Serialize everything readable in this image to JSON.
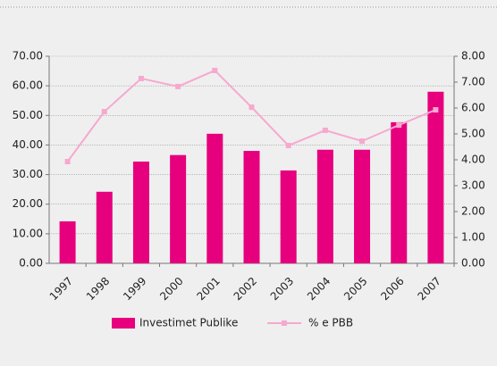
{
  "chart_data": {
    "type": "bar_line",
    "categories": [
      "1997",
      "1998",
      "1999",
      "2000",
      "2001",
      "2002",
      "2003",
      "2004",
      "2005",
      "2006",
      "2007"
    ],
    "series": [
      {
        "name": "Investimet Publike",
        "type": "bar",
        "color": "#e6007e",
        "values": [
          14.2,
          24.2,
          34.4,
          36.6,
          43.8,
          38.0,
          31.4,
          38.4,
          38.4,
          47.7,
          58.0
        ]
      },
      {
        "name": "% e PBB",
        "type": "line",
        "axis": "y2",
        "color": "#f7a8cf",
        "values": [
          3.93,
          5.86,
          7.14,
          6.83,
          7.45,
          6.03,
          4.55,
          5.14,
          4.72,
          5.34,
          5.93
        ]
      }
    ],
    "ylim": [
      0,
      70
    ],
    "yticks": [
      {
        "value": 0,
        "label": "0.00"
      },
      {
        "value": 10,
        "label": "10.00"
      },
      {
        "value": 20,
        "label": "20.00"
      },
      {
        "value": 30,
        "label": "30.00"
      },
      {
        "value": 40,
        "label": "40.00"
      },
      {
        "value": 50,
        "label": "50.00"
      },
      {
        "value": 60,
        "label": "60.00"
      },
      {
        "value": 70,
        "label": "70.00"
      }
    ],
    "y2lim": [
      0,
      8
    ],
    "y2ticks": [
      {
        "value": 0,
        "label": "0.00"
      },
      {
        "value": 1,
        "label": "1.00"
      },
      {
        "value": 2,
        "label": "2.00"
      },
      {
        "value": 3,
        "label": "3.00"
      },
      {
        "value": 4,
        "label": "4.00"
      },
      {
        "value": 5,
        "label": "5.00"
      },
      {
        "value": 6,
        "label": "6.00"
      },
      {
        "value": 7,
        "label": "7.00"
      },
      {
        "value": 8,
        "label": "8.00"
      }
    ],
    "grid": true,
    "legend": "bottom"
  }
}
